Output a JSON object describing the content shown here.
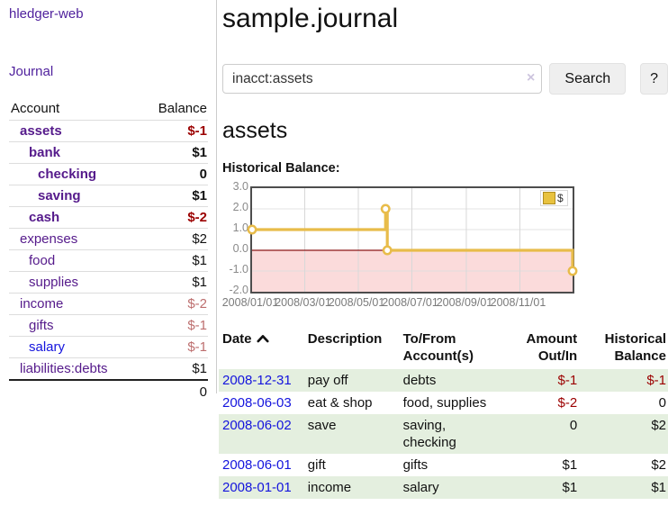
{
  "colors": {
    "link_purple": "#551a8b",
    "link_blue": "#1414dd",
    "negative_red": "#9b0000",
    "negative_dim_red": "#bd6e6e",
    "chart_line_gold": "#e8bc4a",
    "negative_region_pink": "#fbdbdb",
    "zero_line_red": "#8c1717",
    "row_stripe_green": "#e4efdf"
  },
  "sidebar": {
    "brand": "hledger-web",
    "nav": [
      {
        "label": "Journal"
      }
    ],
    "accounts_table": {
      "headers": [
        "Account",
        "Balance"
      ],
      "rows": [
        {
          "account": "assets",
          "balance": "$-1",
          "depth": 1,
          "bold": true,
          "balance_style": "negative",
          "link_style": "purple"
        },
        {
          "account": "bank",
          "balance": "$1",
          "depth": 2,
          "bold": true,
          "balance_style": "normal",
          "link_style": "purple"
        },
        {
          "account": "checking",
          "balance": "0",
          "depth": 3,
          "bold": true,
          "balance_style": "normal",
          "link_style": "purple"
        },
        {
          "account": "saving",
          "balance": "$1",
          "depth": 3,
          "bold": true,
          "balance_style": "normal",
          "link_style": "purple"
        },
        {
          "account": "cash",
          "balance": "$-2",
          "depth": 2,
          "bold": true,
          "balance_style": "negative",
          "link_style": "purple"
        },
        {
          "account": "expenses",
          "balance": "$2",
          "depth": 1,
          "bold": false,
          "balance_style": "normal",
          "link_style": "purple"
        },
        {
          "account": "food",
          "balance": "$1",
          "depth": 2,
          "bold": false,
          "balance_style": "normal",
          "link_style": "purple"
        },
        {
          "account": "supplies",
          "balance": "$1",
          "depth": 2,
          "bold": false,
          "balance_style": "normal",
          "link_style": "purple"
        },
        {
          "account": "income",
          "balance": "$-2",
          "depth": 1,
          "bold": false,
          "balance_style": "negative-dim",
          "link_style": "purple"
        },
        {
          "account": "gifts",
          "balance": "$-1",
          "depth": 2,
          "bold": false,
          "balance_style": "negative-dim",
          "link_style": "purple"
        },
        {
          "account": "salary",
          "balance": "$-1",
          "depth": 2,
          "bold": false,
          "balance_style": "negative-dim",
          "link_style": "blue"
        },
        {
          "account": "liabilities:debts",
          "balance": "$1",
          "depth": 1,
          "bold": false,
          "balance_style": "normal",
          "link_style": "purple"
        }
      ],
      "total": "0"
    }
  },
  "main": {
    "title": "sample.journal",
    "search": {
      "value": "inacct:assets",
      "clear_icon": "×",
      "search_button": "Search",
      "help_button": "?"
    },
    "account_heading": "assets",
    "chart_title": "Historical Balance:"
  },
  "chart_data": {
    "type": "line",
    "step": true,
    "title": "Historical Balance",
    "series": [
      {
        "name": "$",
        "points": [
          {
            "date": "2008-01-01",
            "value": 1
          },
          {
            "date": "2008-06-01",
            "value": 2
          },
          {
            "date": "2008-06-03",
            "value": 0
          },
          {
            "date": "2008-12-31",
            "value": -1
          }
        ]
      }
    ],
    "x_start": "2008-01-01",
    "x_end": "2008-12-31",
    "xticks": [
      {
        "date": "2008-01-01",
        "label": "2008/01/01"
      },
      {
        "date": "2008-03-01",
        "label": "2008/03/01"
      },
      {
        "date": "2008-05-01",
        "label": "2008/05/01"
      },
      {
        "date": "2008-07-01",
        "label": "2008/07/01"
      },
      {
        "date": "2008-09-01",
        "label": "2008/09/01"
      },
      {
        "date": "2008-11-01",
        "label": "2008/11/01"
      }
    ],
    "yticks": [
      "3.0",
      "2.0",
      "1.0",
      "0.0",
      "-1.0",
      "-2.0"
    ],
    "ylim": [
      -2,
      3
    ],
    "legend": {
      "label": "$",
      "position": "top-right"
    },
    "grid": true,
    "negative_region_shaded": true
  },
  "register": {
    "headers": [
      "Date",
      "Description",
      "To/From\nAccount(s)",
      "Amount\nOut/In",
      "Historical\nBalance"
    ],
    "sort": {
      "column": "Date",
      "direction": "ascending"
    },
    "rows": [
      {
        "date": "2008-12-31",
        "description": "pay off",
        "accounts": "debts",
        "amount": "$-1",
        "balance": "$-1",
        "amount_style": "negative",
        "balance_style": "negative"
      },
      {
        "date": "2008-06-03",
        "description": "eat & shop",
        "accounts": "food, supplies",
        "amount": "$-2",
        "balance": "0",
        "amount_style": "negative",
        "balance_style": "normal"
      },
      {
        "date": "2008-06-02",
        "description": "save",
        "accounts": "saving, checking",
        "amount": "0",
        "balance": "$2",
        "amount_style": "normal",
        "balance_style": "normal"
      },
      {
        "date": "2008-06-01",
        "description": "gift",
        "accounts": "gifts",
        "amount": "$1",
        "balance": "$2",
        "amount_style": "normal",
        "balance_style": "normal"
      },
      {
        "date": "2008-01-01",
        "description": "income",
        "accounts": "salary",
        "amount": "$1",
        "balance": "$1",
        "amount_style": "normal",
        "balance_style": "normal"
      }
    ]
  }
}
